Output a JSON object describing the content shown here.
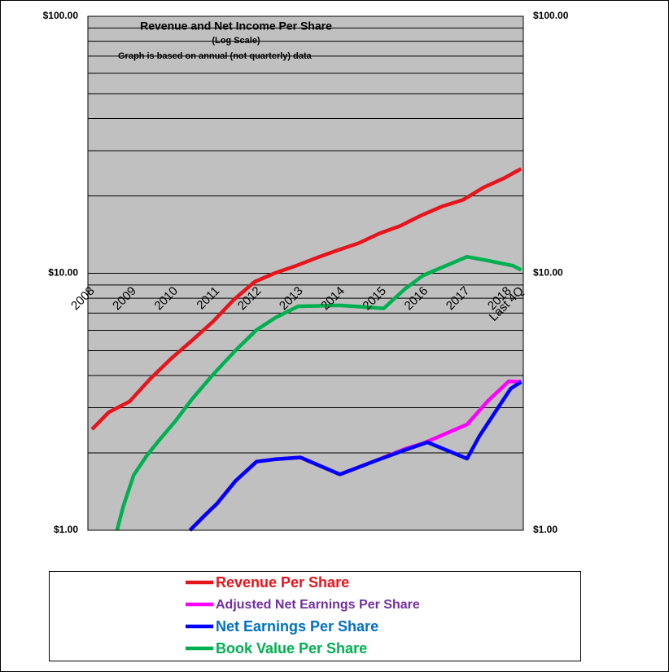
{
  "chart_data": {
    "type": "line",
    "title": "Revenue and Net Income Per Share",
    "subtitle": "(Log Scale)",
    "annotation": "Graph is based on annual (not quarterly) data",
    "log_scale": true,
    "grid": true,
    "xlim": [
      2008,
      2018.45
    ],
    "xticks": [
      {
        "value": 2008,
        "label": "2008"
      },
      {
        "value": 2009,
        "label": "2009"
      },
      {
        "value": 2010,
        "label": "2010"
      },
      {
        "value": 2011,
        "label": "2011"
      },
      {
        "value": 2012,
        "label": "2012"
      },
      {
        "value": 2013,
        "label": "2013"
      },
      {
        "value": 2014,
        "label": "2014"
      },
      {
        "value": 2015,
        "label": "2015"
      },
      {
        "value": 2016,
        "label": "2016"
      },
      {
        "value": 2017,
        "label": "2017"
      },
      {
        "value": 2018,
        "label": "2018"
      },
      {
        "value": 2018.3,
        "label": "Last 4Q"
      }
    ],
    "ylim": [
      1,
      100
    ],
    "yticks": [
      {
        "value": 1,
        "label": "$1.00"
      },
      {
        "value": 10,
        "label": "$10.00"
      },
      {
        "value": 100,
        "label": "$100.00"
      }
    ],
    "series": [
      {
        "name": "Revenue Per Share",
        "color": "#e8141c",
        "label_color": "#e8141c",
        "x": [
          2008.1,
          2008.5,
          2009.0,
          2009.5,
          2010.0,
          2010.5,
          2011.0,
          2011.5,
          2012.0,
          2012.5,
          2013.0,
          2013.5,
          2014.0,
          2014.5,
          2015.0,
          2015.5,
          2016.0,
          2016.5,
          2017.0,
          2017.5,
          2018.0,
          2018.4
        ],
        "values": [
          2.47,
          2.88,
          3.17,
          3.89,
          4.66,
          5.48,
          6.48,
          7.89,
          9.26,
          10.04,
          10.7,
          11.5,
          12.3,
          13.1,
          14.3,
          15.3,
          16.8,
          18.2,
          19.3,
          21.6,
          23.5,
          25.5
        ]
      },
      {
        "name": "Adjusted Net Earnings Per Share",
        "color": "#ff00ff",
        "label_color": "#7030a0",
        "x": [
          2010.45,
          2010.8,
          2011.1,
          2011.55,
          2012.05,
          2012.5,
          2013.1,
          2014.05,
          2014.85,
          2015.6,
          2016.05,
          2017.1,
          2017.6,
          2018.1,
          2018.4
        ],
        "values": [
          1.0,
          1.14,
          1.27,
          1.56,
          1.85,
          1.89,
          1.92,
          1.65,
          1.85,
          2.07,
          2.18,
          2.58,
          3.19,
          3.8,
          3.78
        ]
      },
      {
        "name": "Net Earnings Per Share",
        "color": "#0000ff",
        "label_color": "#0070c0",
        "x": [
          2010.45,
          2010.8,
          2011.1,
          2011.55,
          2012.05,
          2012.5,
          2013.1,
          2014.05,
          2014.85,
          2015.6,
          2016.15,
          2017.1,
          2017.4,
          2017.85,
          2018.15,
          2018.4
        ],
        "values": [
          1.0,
          1.14,
          1.27,
          1.56,
          1.85,
          1.89,
          1.92,
          1.65,
          1.85,
          2.05,
          2.2,
          1.9,
          2.33,
          3.01,
          3.56,
          3.78
        ]
      },
      {
        "name": "Book Value Per Share",
        "color": "#00b050",
        "label_color": "#00b050",
        "x": [
          2008.7,
          2008.85,
          2009.1,
          2009.4,
          2009.7,
          2010.1,
          2010.5,
          2011.0,
          2011.55,
          2012.05,
          2012.5,
          2013.05,
          2014.05,
          2015.1,
          2015.6,
          2016.05,
          2017.1,
          2017.6,
          2018.2,
          2018.4
        ],
        "values": [
          1.0,
          1.24,
          1.64,
          1.94,
          2.23,
          2.66,
          3.24,
          4.03,
          5.02,
          6.02,
          6.72,
          7.44,
          7.5,
          7.3,
          8.67,
          9.82,
          11.6,
          11.2,
          10.7,
          10.3
        ]
      }
    ]
  }
}
